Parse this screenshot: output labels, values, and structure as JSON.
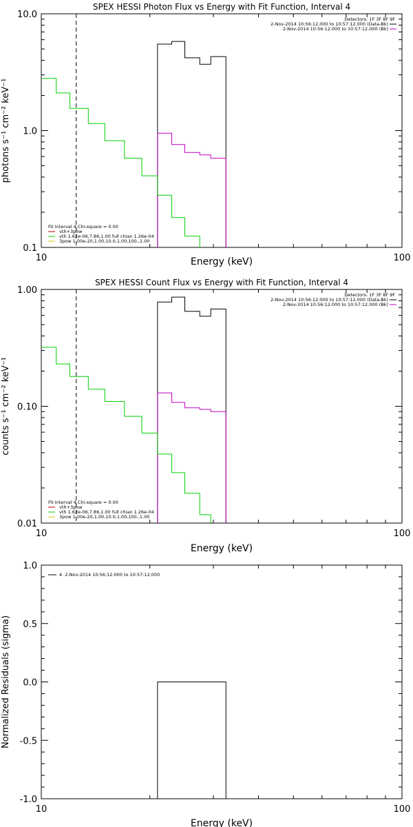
{
  "chart_data": [
    {
      "type": "line",
      "title": "SPEX HESSI Photon Flux vs Energy with Fit Function, Interval 4",
      "xlabel": "Energy (keV)",
      "ylabel": "photons s⁻¹ cm⁻² keV⁻¹",
      "x_scale": "log",
      "y_scale": "log",
      "xlim": [
        10,
        100
      ],
      "ylim": [
        0.1,
        10
      ],
      "x_tick_labels": [
        "10",
        "100"
      ],
      "y_tick_labels": [
        "0.1",
        "1.0",
        "10.0"
      ],
      "y_tick_values": [
        0.1,
        1,
        10
      ],
      "vertical_marker_x": 12.5,
      "legend_top": {
        "header": "Detectors: 1F 3F 8F 9F",
        "entries": [
          {
            "label": "2-Nov-2014 10:56:12.000 to 10:57:12.000 (Data-Bk)",
            "color": "#000000"
          },
          {
            "label": "2-Nov-2014 10:56:12.000 to 10:57:12.000 (Bk)",
            "color": "#c000c0"
          }
        ]
      },
      "legend_bottom": {
        "header": "Fit Interval  4   Chi-square = 0.00",
        "entries": [
          {
            "label": "vth+3pow",
            "color": "#c00000"
          },
          {
            "label": "vth 1.62e-06,7.86,1.00  full chian 1.26e-04",
            "color": "#00d000"
          },
          {
            "label": "3pow 1.00e-20,1.00,10.0,1.00,100.,1.00",
            "color": "#d0c000"
          }
        ]
      },
      "series": [
        {
          "color": "#000000",
          "edges": [
            21,
            23,
            25,
            27.5,
            29.5,
            32.5
          ],
          "values": [
            5.5,
            5.8,
            4.2,
            3.7,
            4.3
          ]
        },
        {
          "color": "#c000c0",
          "edges": [
            21,
            23,
            25,
            27.5,
            29.5,
            32.5
          ],
          "values": [
            0.95,
            0.76,
            0.65,
            0.62,
            0.58
          ]
        },
        {
          "color": "#00d000",
          "edges": [
            10,
            11,
            12,
            13.5,
            15,
            17,
            19,
            21,
            23,
            25,
            27.5
          ],
          "values": [
            2.8,
            2.1,
            1.55,
            1.15,
            0.82,
            0.58,
            0.41,
            0.28,
            0.18,
            0.125,
            0.1
          ]
        }
      ]
    },
    {
      "type": "line",
      "title": "SPEX HESSI Count Flux vs Energy with Fit Function, Interval 4",
      "xlabel": "Energy (keV)",
      "ylabel": "counts s⁻¹ cm⁻² keV⁻¹",
      "x_scale": "log",
      "y_scale": "log",
      "xlim": [
        10,
        100
      ],
      "ylim": [
        0.01,
        1
      ],
      "x_tick_labels": [
        "10",
        "100"
      ],
      "y_tick_labels": [
        "0.01",
        "0.10",
        "1.00"
      ],
      "y_tick_values": [
        0.01,
        0.1,
        1
      ],
      "vertical_marker_x": 12.5,
      "legend_top": {
        "header": "Detectors: 1F 3F 8F 9F",
        "entries": [
          {
            "label": "2-Nov-2014 10:56:12.000 to 10:57:12.000 (Data-Bk)",
            "color": "#000000"
          },
          {
            "label": "2-Nov-2014 10:56:12.000 to 10:57:12.000 (Bk)",
            "color": "#c000c0"
          }
        ]
      },
      "legend_bottom": {
        "header": "Fit Interval  4   Chi-square = 0.00",
        "entries": [
          {
            "label": "vth+3pow",
            "color": "#c00000"
          },
          {
            "label": "vth 1.62e-06,7.86,1.00  full chian 1.26e-04",
            "color": "#00d000"
          },
          {
            "label": "3pow 1.00e-20,1.00,10.0,1.00,100.,1.00",
            "color": "#d0c000"
          }
        ]
      },
      "series": [
        {
          "color": "#000000",
          "edges": [
            21,
            23,
            25,
            27.5,
            29.5,
            32.5
          ],
          "values": [
            0.78,
            0.86,
            0.65,
            0.59,
            0.68
          ]
        },
        {
          "color": "#c000c0",
          "edges": [
            21,
            23,
            25,
            27.5,
            29.5,
            32.5
          ],
          "values": [
            0.13,
            0.108,
            0.097,
            0.094,
            0.09
          ]
        },
        {
          "color": "#00d000",
          "edges": [
            10,
            11,
            12,
            13.5,
            15,
            17,
            19,
            21,
            23,
            25,
            27.5,
            29.5
          ],
          "values": [
            0.32,
            0.23,
            0.18,
            0.14,
            0.11,
            0.082,
            0.059,
            0.039,
            0.027,
            0.018,
            0.0118,
            0.01
          ]
        }
      ]
    },
    {
      "type": "line",
      "title": "",
      "xlabel": "Energy (keV)",
      "ylabel": "Normalized Residuals (sigma)",
      "x_scale": "log",
      "y_scale": "linear",
      "xlim": [
        10,
        100
      ],
      "ylim": [
        -1,
        1
      ],
      "x_tick_labels": [
        "10",
        "100"
      ],
      "y_tick_labels": [
        "-1.0",
        "-0.5",
        "0.0",
        "0.5",
        "1.0"
      ],
      "y_tick_values": [
        -1,
        -0.5,
        0,
        0.5,
        1
      ],
      "legend_top": {
        "header": "",
        "entries": [
          {
            "label": "4. 2-Nov-2014 10:56:12.000 to 10:57:12.000",
            "color": "#000000"
          }
        ]
      },
      "series": [
        {
          "color": "#000000",
          "edges": [
            21,
            32.5
          ],
          "values": [
            0
          ],
          "drop_to_bottom": true
        }
      ]
    }
  ]
}
